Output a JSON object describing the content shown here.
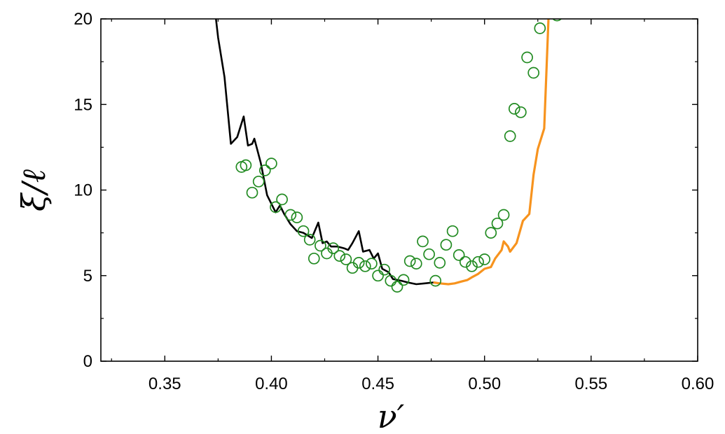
{
  "chart_data": {
    "type": "scatter",
    "xlabel": "ν′",
    "ylabel": "ξ/ℓ",
    "xlim": [
      0.32,
      0.6
    ],
    "ylim": [
      0,
      20
    ],
    "xticks": [
      0.35,
      0.4,
      0.45,
      0.5,
      0.55,
      0.6
    ],
    "xtick_labels": [
      "0.35",
      "0.40",
      "0.45",
      "0.50",
      "0.55",
      "0.60"
    ],
    "yticks": [
      0,
      5,
      10,
      15,
      20
    ],
    "ytick_labels": [
      "0",
      "5",
      "10",
      "15",
      "20"
    ],
    "grid": false,
    "legend": "none",
    "series": [
      {
        "kind": "line",
        "color": "#000000",
        "points": [
          [
            0.374,
            20.0
          ],
          [
            0.375,
            18.9
          ],
          [
            0.378,
            16.6
          ],
          [
            0.381,
            12.7
          ],
          [
            0.384,
            13.1
          ],
          [
            0.387,
            14.3
          ],
          [
            0.389,
            12.6
          ],
          [
            0.391,
            12.7
          ],
          [
            0.392,
            13.0
          ],
          [
            0.395,
            11.6
          ],
          [
            0.398,
            9.7
          ],
          [
            0.402,
            8.7
          ],
          [
            0.404,
            9.1
          ],
          [
            0.406,
            8.6
          ],
          [
            0.409,
            8.0
          ],
          [
            0.412,
            7.6
          ],
          [
            0.415,
            7.5
          ],
          [
            0.419,
            7.2
          ],
          [
            0.422,
            8.1
          ],
          [
            0.424,
            6.9
          ],
          [
            0.426,
            7.0
          ],
          [
            0.428,
            6.7
          ],
          [
            0.431,
            6.7
          ],
          [
            0.434,
            6.6
          ],
          [
            0.436,
            6.5
          ],
          [
            0.438,
            6.9
          ],
          [
            0.441,
            7.6
          ],
          [
            0.443,
            6.4
          ],
          [
            0.446,
            6.5
          ],
          [
            0.448,
            6.0
          ],
          [
            0.45,
            6.3
          ],
          [
            0.452,
            5.4
          ],
          [
            0.455,
            5.2
          ],
          [
            0.457,
            4.8
          ],
          [
            0.461,
            4.7
          ],
          [
            0.464,
            4.6
          ],
          [
            0.468,
            4.5
          ],
          [
            0.472,
            4.55
          ],
          [
            0.476,
            4.6
          ]
        ]
      },
      {
        "kind": "line",
        "color": "#f7931e",
        "points": [
          [
            0.476,
            4.6
          ],
          [
            0.479,
            4.55
          ],
          [
            0.483,
            4.5
          ],
          [
            0.486,
            4.55
          ],
          [
            0.489,
            4.65
          ],
          [
            0.492,
            4.75
          ],
          [
            0.494,
            4.9
          ],
          [
            0.497,
            5.1
          ],
          [
            0.5,
            5.4
          ],
          [
            0.503,
            5.5
          ],
          [
            0.505,
            6.0
          ],
          [
            0.508,
            6.5
          ],
          [
            0.509,
            7.0
          ],
          [
            0.511,
            6.7
          ],
          [
            0.512,
            6.4
          ],
          [
            0.515,
            6.9
          ],
          [
            0.518,
            8.2
          ],
          [
            0.521,
            8.6
          ],
          [
            0.523,
            10.9
          ],
          [
            0.525,
            12.4
          ],
          [
            0.528,
            13.6
          ],
          [
            0.53,
            20.0
          ]
        ]
      },
      {
        "kind": "scatter",
        "color": "#228b22",
        "marker": "open-circle",
        "points": [
          [
            0.386,
            11.35
          ],
          [
            0.388,
            11.45
          ],
          [
            0.391,
            9.85
          ],
          [
            0.394,
            10.5
          ],
          [
            0.397,
            11.15
          ],
          [
            0.4,
            11.55
          ],
          [
            0.402,
            9.0
          ],
          [
            0.405,
            9.45
          ],
          [
            0.409,
            8.55
          ],
          [
            0.412,
            8.4
          ],
          [
            0.415,
            7.6
          ],
          [
            0.418,
            7.1
          ],
          [
            0.42,
            6.0
          ],
          [
            0.423,
            6.75
          ],
          [
            0.426,
            6.3
          ],
          [
            0.429,
            6.6
          ],
          [
            0.432,
            6.15
          ],
          [
            0.435,
            5.95
          ],
          [
            0.438,
            5.45
          ],
          [
            0.441,
            5.75
          ],
          [
            0.444,
            5.55
          ],
          [
            0.447,
            5.7
          ],
          [
            0.45,
            5.0
          ],
          [
            0.453,
            5.35
          ],
          [
            0.456,
            4.7
          ],
          [
            0.459,
            4.35
          ],
          [
            0.462,
            4.75
          ],
          [
            0.465,
            5.85
          ],
          [
            0.468,
            5.7
          ],
          [
            0.471,
            7.0
          ],
          [
            0.474,
            6.25
          ],
          [
            0.477,
            4.7
          ],
          [
            0.479,
            5.75
          ],
          [
            0.482,
            6.8
          ],
          [
            0.485,
            7.6
          ],
          [
            0.488,
            6.2
          ],
          [
            0.491,
            5.8
          ],
          [
            0.494,
            5.55
          ],
          [
            0.497,
            5.8
          ],
          [
            0.5,
            5.95
          ],
          [
            0.503,
            7.5
          ],
          [
            0.506,
            8.05
          ],
          [
            0.509,
            8.55
          ],
          [
            0.512,
            13.15
          ],
          [
            0.514,
            14.75
          ],
          [
            0.517,
            14.55
          ],
          [
            0.52,
            17.75
          ],
          [
            0.523,
            16.85
          ],
          [
            0.526,
            19.45
          ],
          [
            0.534,
            20.2
          ]
        ]
      }
    ]
  }
}
